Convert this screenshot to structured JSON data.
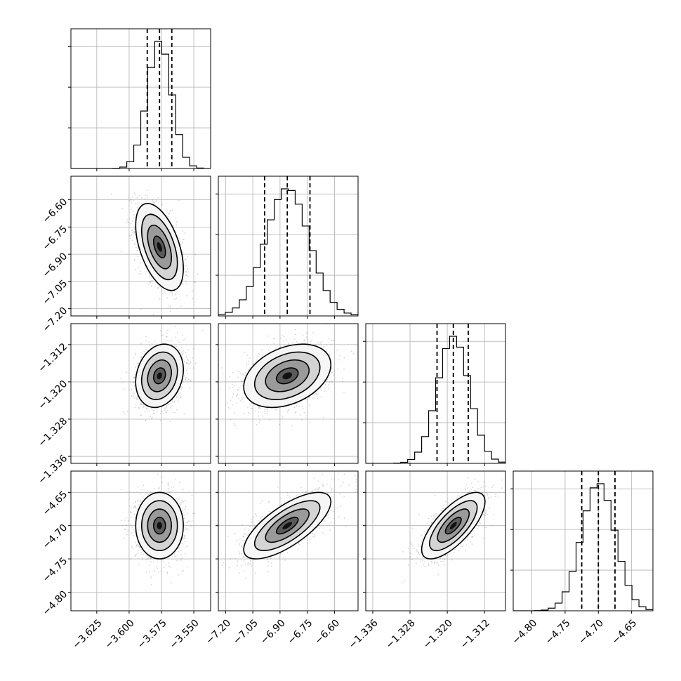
{
  "chart_data": {
    "type": "corner",
    "grid": true,
    "parameters": [
      {
        "median": -3.5765,
        "q16": -3.586,
        "q84": -3.567,
        "sigma": 0.0092,
        "range": [
          -3.645,
          -3.537
        ],
        "ticks": [
          -3.625,
          -3.6,
          -3.575,
          -3.55
        ],
        "tick_labels": [
          "−3.625",
          "−3.600",
          "−3.575",
          "−3.550"
        ]
      },
      {
        "median": -6.86,
        "q16": -6.985,
        "q84": -6.735,
        "sigma": 0.12,
        "range": [
          -7.24,
          -6.47
        ],
        "ticks": [
          -7.2,
          -7.05,
          -6.9,
          -6.75,
          -6.6
        ],
        "tick_labels": [
          "−7.20",
          "−7.05",
          "−6.90",
          "−6.75",
          "−6.60"
        ]
      },
      {
        "median": -1.3187,
        "q16": -1.3222,
        "q84": -1.3155,
        "sigma": 0.0034,
        "range": [
          -1.3375,
          -1.3075
        ],
        "ticks": [
          -1.336,
          -1.328,
          -1.32,
          -1.312
        ],
        "tick_labels": [
          "−1.336",
          "−1.328",
          "−1.320",
          "−1.312"
        ]
      },
      {
        "median": -4.7,
        "q16": -4.725,
        "q84": -4.675,
        "sigma": 0.025,
        "range": [
          -4.828,
          -4.618
        ],
        "ticks": [
          -4.8,
          -4.75,
          -4.7,
          -4.65
        ],
        "tick_labels": [
          "−4.80",
          "−4.75",
          "−4.70",
          "−4.65"
        ]
      }
    ],
    "correlations": [
      {
        "i": 0,
        "j": 1,
        "rho": -0.5
      },
      {
        "i": 0,
        "j": 2,
        "rho": 0.2
      },
      {
        "i": 1,
        "j": 2,
        "rho": 0.35
      },
      {
        "i": 0,
        "j": 3,
        "rho": 0.0
      },
      {
        "i": 1,
        "j": 3,
        "rho": 0.72
      },
      {
        "i": 2,
        "j": 3,
        "rho": 0.72
      }
    ],
    "contour_levels_sigma": [
      0.5,
      1.0,
      1.5,
      2.0
    ],
    "quantiles": [
      0.16,
      0.5,
      0.84
    ],
    "histogram_bins": 20
  }
}
